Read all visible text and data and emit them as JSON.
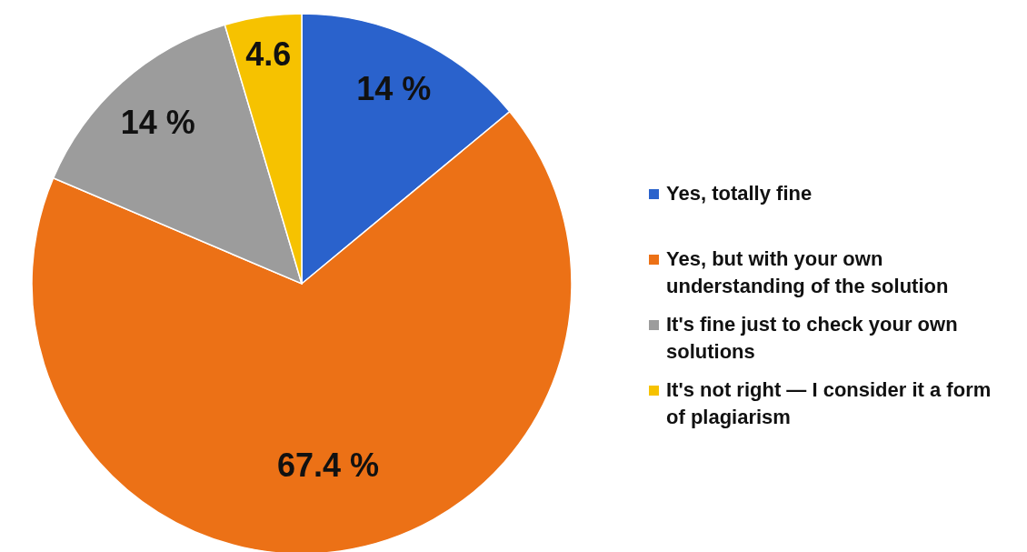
{
  "chart_data": {
    "type": "pie",
    "categories": [
      "Yes, totally fine",
      "Yes, but with your own understanding of the solution",
      "It's fine just to check your own solutions",
      "It's not right — I consider it a form of plagiarism"
    ],
    "values": [
      14,
      67.4,
      14,
      4.6
    ],
    "value_labels": [
      "14 %",
      "67.4 %",
      "14 %",
      "4.6"
    ],
    "colors": [
      "#2a62cc",
      "#ec7116",
      "#9c9c9c",
      "#f6c200"
    ],
    "legend": "right"
  }
}
